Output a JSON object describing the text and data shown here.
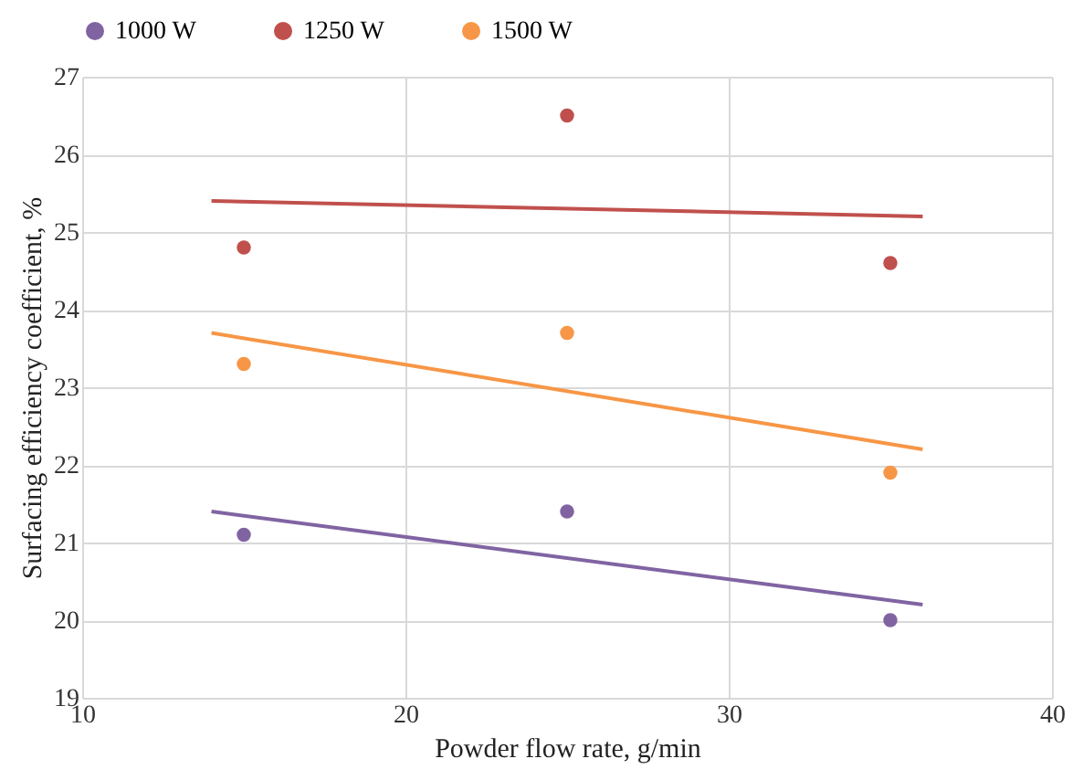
{
  "chart_data": {
    "type": "scatter",
    "xlabel": "Powder flow rate, g/min",
    "ylabel": "Surfacing efficiency coefficient, %",
    "xlim": [
      10,
      40
    ],
    "xticks": [
      10,
      20,
      30,
      40
    ],
    "ylim": [
      19,
      27
    ],
    "yticks": [
      19,
      20,
      21,
      22,
      23,
      24,
      25,
      26,
      27
    ],
    "grid": true,
    "legend": "top",
    "marker": "circle",
    "series": [
      {
        "name": "1000 W",
        "color": "#8064a2",
        "x": [
          15,
          25,
          35
        ],
        "values": [
          21.1,
          21.4,
          20.0
        ]
      },
      {
        "name": "1250 W",
        "color": "#c0504d",
        "x": [
          15,
          25,
          35
        ],
        "values": [
          24.8,
          26.5,
          24.6
        ]
      },
      {
        "name": "1500 W",
        "color": "#f79646",
        "x": [
          15,
          25,
          35
        ],
        "values": [
          23.3,
          23.7,
          21.9
        ]
      },
      {
        "type": "line",
        "color": "#8064a2",
        "x": [
          14,
          36
        ],
        "values": [
          21.4,
          20.2
        ],
        "line_style": "solid",
        "marker": "none"
      },
      {
        "type": "line",
        "color": "#c0504d",
        "x": [
          14,
          36
        ],
        "values": [
          25.4,
          25.2
        ],
        "line_style": "solid",
        "marker": "none"
      },
      {
        "type": "line",
        "color": "#f79646",
        "x": [
          14,
          36
        ],
        "values": [
          23.7,
          22.2
        ],
        "line_style": "solid",
        "marker": "none"
      }
    ]
  }
}
